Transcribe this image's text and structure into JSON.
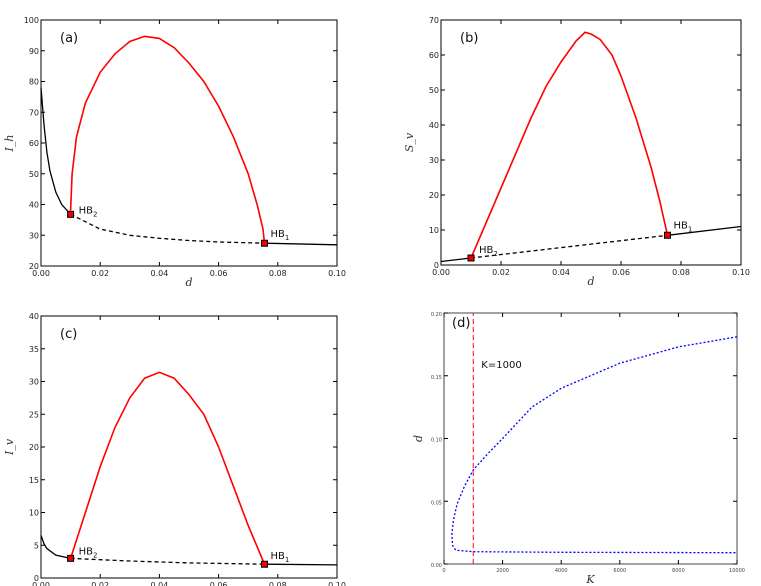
{
  "chart_data": [
    {
      "type": "line",
      "panel_label": "(a)",
      "xlabel": "d",
      "ylabel": "I_h",
      "ylabel_main": "I",
      "ylabel_sub": "h",
      "xlim": [
        0,
        0.1
      ],
      "ylim": [
        20,
        100
      ],
      "xticks": [
        0,
        0.02,
        0.04,
        0.06,
        0.08,
        0.1
      ],
      "xtick_labels": [
        "0.00",
        "0.02",
        "0.04",
        "0.06",
        "0.08",
        "0.10"
      ],
      "yticks": [
        20,
        30,
        40,
        50,
        60,
        70,
        80,
        90,
        100
      ],
      "ytick_labels": [
        "20",
        "30",
        "40",
        "50",
        "60",
        "70",
        "80",
        "90",
        "100"
      ],
      "series": [
        {
          "name": "stable-left",
          "color": "#000000",
          "style": "solid",
          "points": [
            [
              0,
              78
            ],
            [
              0.001,
              66
            ],
            [
              0.002,
              57
            ],
            [
              0.003,
              51
            ],
            [
              0.005,
              44
            ],
            [
              0.007,
              40
            ],
            [
              0.01,
              36.8
            ]
          ]
        },
        {
          "name": "unstable",
          "color": "#000000",
          "style": "dashed",
          "points": [
            [
              0.01,
              36.8
            ],
            [
              0.02,
              32
            ],
            [
              0.03,
              30
            ],
            [
              0.04,
              29
            ],
            [
              0.05,
              28.3
            ],
            [
              0.06,
              27.8
            ],
            [
              0.0755,
              27.4
            ]
          ]
        },
        {
          "name": "stable-right",
          "color": "#000000",
          "style": "solid",
          "points": [
            [
              0.0755,
              27.4
            ],
            [
              0.1,
              26.9
            ]
          ]
        },
        {
          "name": "periodic-max",
          "color": "#ff0000",
          "style": "solid",
          "points": [
            [
              0.01,
              38
            ],
            [
              0.0105,
              50
            ],
            [
              0.012,
              62
            ],
            [
              0.015,
              73
            ],
            [
              0.02,
              83
            ],
            [
              0.025,
              89
            ],
            [
              0.03,
              93
            ],
            [
              0.035,
              94.7
            ],
            [
              0.04,
              94
            ],
            [
              0.045,
              91
            ],
            [
              0.05,
              86
            ],
            [
              0.055,
              80
            ],
            [
              0.06,
              72
            ],
            [
              0.065,
              62
            ],
            [
              0.07,
              50
            ],
            [
              0.073,
              40
            ],
            [
              0.075,
              32
            ],
            [
              0.0755,
              27.4
            ]
          ]
        }
      ],
      "markers": [
        {
          "label": "HB",
          "sub": "2",
          "x": 0.01,
          "y": 36.8,
          "dx": 8,
          "dy": -1
        },
        {
          "label": "HB",
          "sub": "1",
          "x": 0.0755,
          "y": 27.4,
          "dx": 6,
          "dy": -6
        }
      ]
    },
    {
      "type": "line",
      "panel_label": "(b)",
      "xlabel": "d",
      "ylabel": "S_v",
      "ylabel_main": "S",
      "ylabel_sub": "v",
      "xlim": [
        0,
        0.1
      ],
      "ylim": [
        0,
        70
      ],
      "xticks": [
        0,
        0.02,
        0.04,
        0.06,
        0.08,
        0.1
      ],
      "xtick_labels": [
        "0.00",
        "0.02",
        "0.04",
        "0.06",
        "0.08",
        "0.10"
      ],
      "yticks": [
        0,
        10,
        20,
        30,
        40,
        50,
        60,
        70
      ],
      "ytick_labels": [
        "0",
        "10",
        "20",
        "30",
        "40",
        "50",
        "60",
        "70"
      ],
      "series": [
        {
          "name": "stable-left",
          "color": "#000000",
          "style": "solid",
          "points": [
            [
              0,
              1
            ],
            [
              0.01,
              2
            ]
          ]
        },
        {
          "name": "unstable",
          "color": "#000000",
          "style": "dashed",
          "points": [
            [
              0.01,
              2
            ],
            [
              0.0755,
              8.5
            ]
          ]
        },
        {
          "name": "stable-right",
          "color": "#000000",
          "style": "solid",
          "points": [
            [
              0.0755,
              8.5
            ],
            [
              0.1,
              11
            ]
          ]
        },
        {
          "name": "periodic-max",
          "color": "#ff0000",
          "style": "solid",
          "points": [
            [
              0.01,
              2
            ],
            [
              0.015,
              12
            ],
            [
              0.02,
              22
            ],
            [
              0.025,
              32
            ],
            [
              0.03,
              42
            ],
            [
              0.035,
              51
            ],
            [
              0.04,
              58
            ],
            [
              0.045,
              64
            ],
            [
              0.048,
              66.5
            ],
            [
              0.05,
              66
            ],
            [
              0.053,
              64.5
            ],
            [
              0.057,
              60
            ],
            [
              0.06,
              54
            ],
            [
              0.065,
              42
            ],
            [
              0.07,
              28
            ],
            [
              0.073,
              18
            ],
            [
              0.0755,
              8.5
            ]
          ]
        }
      ],
      "markers": [
        {
          "label": "HB",
          "sub": "2",
          "x": 0.01,
          "y": 2,
          "dx": 8,
          "dy": -5
        },
        {
          "label": "HB",
          "sub": "1",
          "x": 0.0755,
          "y": 8.5,
          "dx": 6,
          "dy": -7
        }
      ]
    },
    {
      "type": "line",
      "panel_label": "(c)",
      "xlabel": "d",
      "ylabel": "I_v",
      "ylabel_main": "I",
      "ylabel_sub": "v",
      "xlim": [
        0,
        0.1
      ],
      "ylim": [
        0,
        40
      ],
      "xticks": [
        0,
        0.02,
        0.04,
        0.06,
        0.08,
        0.1
      ],
      "xtick_labels": [
        "0.00",
        "0.02",
        "0.04",
        "0.06",
        "0.08",
        "0.10"
      ],
      "yticks": [
        0,
        5,
        10,
        15,
        20,
        25,
        30,
        35,
        40
      ],
      "ytick_labels": [
        "0",
        "5",
        "10",
        "15",
        "20",
        "25",
        "30",
        "35",
        "40"
      ],
      "series": [
        {
          "name": "stable-left",
          "color": "#000000",
          "style": "solid",
          "points": [
            [
              0,
              6.5
            ],
            [
              0.001,
              5.2
            ],
            [
              0.002,
              4.5
            ],
            [
              0.005,
              3.5
            ],
            [
              0.01,
              3
            ]
          ]
        },
        {
          "name": "unstable",
          "color": "#000000",
          "style": "dashed",
          "points": [
            [
              0.01,
              3
            ],
            [
              0.03,
              2.6
            ],
            [
              0.05,
              2.3
            ],
            [
              0.0755,
              2.1
            ]
          ]
        },
        {
          "name": "stable-right",
          "color": "#000000",
          "style": "solid",
          "points": [
            [
              0.0755,
              2.1
            ],
            [
              0.1,
              2
            ]
          ]
        },
        {
          "name": "periodic-max",
          "color": "#ff0000",
          "style": "solid",
          "points": [
            [
              0.01,
              3
            ],
            [
              0.015,
              10
            ],
            [
              0.02,
              17
            ],
            [
              0.025,
              23
            ],
            [
              0.03,
              27.5
            ],
            [
              0.035,
              30.5
            ],
            [
              0.04,
              31.4
            ],
            [
              0.045,
              30.5
            ],
            [
              0.05,
              28
            ],
            [
              0.055,
              25
            ],
            [
              0.06,
              20
            ],
            [
              0.065,
              14
            ],
            [
              0.07,
              8
            ],
            [
              0.0755,
              2.1
            ]
          ]
        }
      ],
      "markers": [
        {
          "label": "HB",
          "sub": "2",
          "x": 0.01,
          "y": 3,
          "dx": 8,
          "dy": -4
        },
        {
          "label": "HB",
          "sub": "1",
          "x": 0.0755,
          "y": 2.1,
          "dx": 6,
          "dy": -5
        }
      ]
    },
    {
      "type": "line",
      "panel_label": "(d)",
      "xlabel": "K",
      "ylabel": "d",
      "ylabel_main": "d",
      "ylabel_sub": "",
      "xlim": [
        0,
        10000
      ],
      "ylim": [
        0,
        0.2
      ],
      "xticks": [
        0,
        2000,
        4000,
        6000,
        8000,
        10000
      ],
      "xtick_labels": [
        "0",
        "2000",
        "4000",
        "6000",
        "8000",
        "10000"
      ],
      "yticks": [
        0,
        0.05,
        0.1,
        0.15,
        0.2
      ],
      "ytick_labels": [
        "0.00",
        "0.05",
        "0.10",
        "0.15",
        "0.20"
      ],
      "series": [
        {
          "name": "hopf-curve",
          "color": "#0000ff",
          "style": "dotted",
          "points": [
            [
              10000,
              0.181
            ],
            [
              8000,
              0.173
            ],
            [
              6000,
              0.16
            ],
            [
              4000,
              0.14
            ],
            [
              3000,
              0.125
            ],
            [
              2000,
              0.1
            ],
            [
              1500,
              0.088
            ],
            [
              1000,
              0.075
            ],
            [
              700,
              0.062
            ],
            [
              450,
              0.048
            ],
            [
              320,
              0.035
            ],
            [
              270,
              0.024
            ],
            [
              290,
              0.015
            ],
            [
              400,
              0.011
            ],
            [
              1000,
              0.0098
            ],
            [
              4000,
              0.0093
            ],
            [
              10000,
              0.009
            ]
          ]
        },
        {
          "name": "K-line",
          "color": "#ff0000",
          "style": "dashed",
          "points": [
            [
              1000,
              0
            ],
            [
              1000,
              0.2
            ]
          ]
        }
      ],
      "annotation": "K=1000",
      "markers": []
    }
  ]
}
